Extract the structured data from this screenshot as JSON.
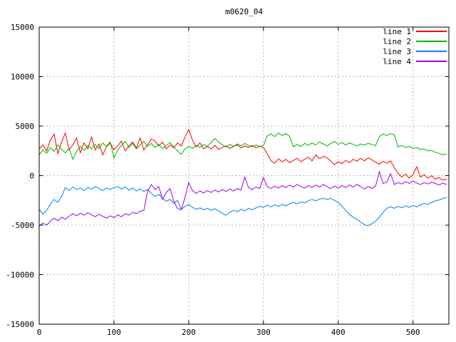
{
  "chart_data": {
    "type": "line",
    "title": "m0620_04",
    "xlabel": "",
    "ylabel": "",
    "xlim": [
      0,
      548
    ],
    "ylim": [
      -15000,
      15000
    ],
    "xticks": [
      0,
      100,
      200,
      300,
      400,
      500
    ],
    "yticks": [
      -15000,
      -10000,
      -5000,
      0,
      5000,
      10000,
      15000
    ],
    "grid": true,
    "grid_color": "#b4b4b4",
    "border_color": "#000000",
    "background": "#ffffff",
    "legend_position": "top-right-inside",
    "x_start": 0,
    "x_step": 5,
    "series": [
      {
        "name": "line 1",
        "color": "#ff0000",
        "values": [
          2700,
          3100,
          2500,
          3600,
          4200,
          2200,
          3400,
          4300,
          2600,
          3100,
          3800,
          2300,
          3300,
          2700,
          3900,
          2600,
          3200,
          2100,
          2900,
          3300,
          2600,
          3000,
          3500,
          2500,
          3000,
          3400,
          2800,
          3800,
          2600,
          3100,
          3700,
          3500,
          3000,
          3400,
          2700,
          3100,
          2800,
          3300,
          3000,
          3900,
          4650,
          3600,
          2900,
          3300,
          2700,
          2950,
          2700,
          3050,
          2650,
          2850,
          3000,
          2750,
          2950,
          3100,
          2800,
          3000,
          2850,
          3050,
          2800,
          2950,
          2850,
          2200,
          1500,
          1250,
          1700,
          1400,
          1650,
          1300,
          1550,
          1750,
          1400,
          1650,
          1850,
          1500,
          2100,
          1700,
          1950,
          1800,
          1450,
          1100,
          1400,
          1200,
          1550,
          1300,
          1650,
          1450,
          1750,
          1500,
          1800,
          1600,
          1350,
          1150,
          1450,
          1250,
          1500,
          800,
          250,
          -150,
          150,
          -250,
          100,
          900,
          -150,
          100,
          -250,
          0,
          -350,
          -200,
          -450,
          -350
        ]
      },
      {
        "name": "line 2",
        "color": "#00b400",
        "values": [
          2100,
          2600,
          2250,
          2850,
          2450,
          3100,
          2650,
          2300,
          2750,
          1650,
          2450,
          2950,
          2550,
          3050,
          2700,
          3150,
          2750,
          3300,
          2950,
          3400,
          1800,
          2600,
          3050,
          3450,
          2850,
          3250,
          2700,
          3100,
          3450,
          2950,
          3250,
          2850,
          3150,
          2750,
          3050,
          3350,
          2900,
          2500,
          2150,
          2700,
          2950,
          2750,
          3050,
          2850,
          3150,
          2950,
          3350,
          3750,
          3400,
          3100,
          2900,
          3150,
          2950,
          3200,
          3000,
          3250,
          3050,
          2900,
          3100,
          2950,
          3050,
          4000,
          4200,
          3950,
          4300,
          4050,
          4250,
          3950,
          2900,
          3150,
          2950,
          3250,
          3050,
          3300,
          3100,
          3400,
          3200,
          3000,
          3250,
          3450,
          3150,
          3350,
          3100,
          3300,
          3150,
          3000,
          3200,
          3100,
          3250,
          3150,
          3050,
          3950,
          4200,
          4050,
          4250,
          4100,
          2900,
          3050,
          2850,
          2950,
          2750,
          2850,
          2650,
          2700,
          2500,
          2550,
          2350,
          2250,
          2100,
          2200
        ]
      },
      {
        "name": "line 3",
        "color": "#0080ff",
        "values": [
          -3400,
          -3900,
          -3500,
          -2900,
          -2400,
          -2700,
          -2100,
          -1200,
          -1500,
          -1150,
          -1400,
          -1250,
          -1500,
          -1200,
          -1350,
          -1100,
          -1300,
          -1500,
          -1250,
          -1400,
          -1200,
          -1100,
          -1350,
          -1150,
          -1450,
          -1250,
          -1550,
          -1350,
          -1600,
          -1400,
          -1800,
          -2100,
          -1900,
          -2300,
          -2600,
          -2400,
          -2800,
          -2500,
          -3400,
          -3100,
          -2900,
          -3200,
          -3400,
          -3250,
          -3450,
          -3300,
          -3500,
          -3350,
          -3550,
          -3800,
          -4000,
          -3700,
          -3500,
          -3650,
          -3400,
          -3550,
          -3300,
          -3450,
          -3250,
          -3100,
          -3200,
          -3000,
          -3150,
          -2950,
          -3100,
          -2900,
          -3050,
          -2850,
          -2700,
          -2850,
          -2650,
          -2750,
          -2550,
          -2400,
          -2550,
          -2350,
          -2300,
          -2400,
          -2300,
          -2500,
          -2700,
          -3100,
          -3500,
          -3900,
          -4200,
          -4400,
          -4700,
          -4950,
          -5050,
          -4850,
          -4600,
          -4200,
          -3700,
          -3300,
          -3150,
          -3300,
          -3100,
          -3250,
          -3050,
          -3200,
          -3000,
          -3150,
          -2950,
          -2800,
          -2900,
          -2700,
          -2550,
          -2450,
          -2300,
          -2200
        ]
      },
      {
        "name": "line 4",
        "color": "#a000f0",
        "values": [
          -5100,
          -4800,
          -5000,
          -4600,
          -4300,
          -4550,
          -4200,
          -4400,
          -4100,
          -3850,
          -4050,
          -3800,
          -4000,
          -3750,
          -3950,
          -4150,
          -3900,
          -4100,
          -4300,
          -4050,
          -4250,
          -3950,
          -4150,
          -3850,
          -4000,
          -3700,
          -3850,
          -3600,
          -3500,
          -1600,
          -900,
          -1400,
          -1100,
          -2400,
          -1700,
          -1300,
          -2600,
          -3300,
          -3450,
          -2200,
          -700,
          -1500,
          -1800,
          -1550,
          -1750,
          -1500,
          -1700,
          -1450,
          -1650,
          -1400,
          -1600,
          -1350,
          -1550,
          -1300,
          -1450,
          -150,
          -1200,
          -1400,
          -1150,
          -1300,
          -200,
          -1100,
          -1300,
          -1050,
          -1250,
          -1000,
          -1200,
          -950,
          -1150,
          -900,
          -1100,
          -1250,
          -1000,
          -1200,
          -950,
          -1150,
          -900,
          -1100,
          -1300,
          -1050,
          -1250,
          -1000,
          -1200,
          -950,
          -1150,
          -900,
          -1100,
          -1350,
          -1100,
          -1300,
          -1050,
          400,
          -800,
          -650,
          200,
          -900,
          -700,
          -850,
          -600,
          -800,
          -550,
          -750,
          -900,
          -700,
          -850,
          -650,
          -800,
          -950,
          -750,
          -900
        ]
      }
    ]
  }
}
